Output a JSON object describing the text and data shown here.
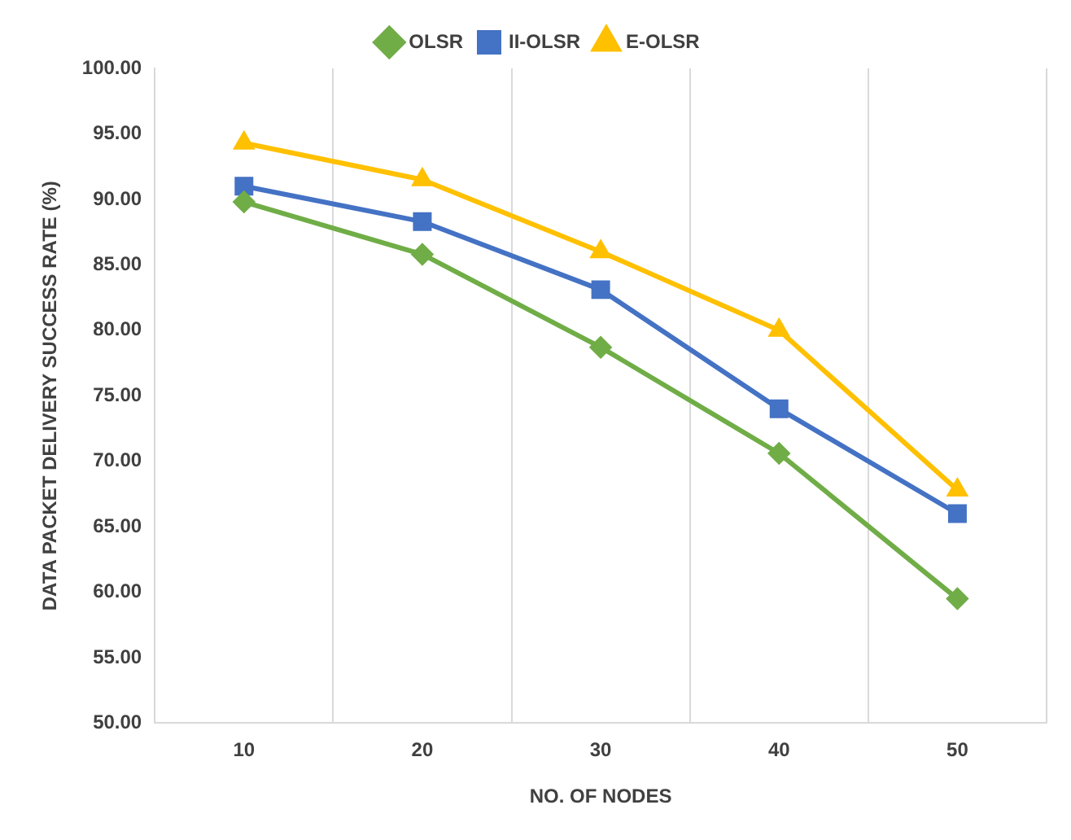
{
  "chart_data": {
    "type": "line",
    "xlabel": "NO. OF NODES",
    "ylabel": "DATA PACKET DELIVERY SUCCESS RATE (%)",
    "categories": [
      "10",
      "20",
      "30",
      "40",
      "50"
    ],
    "series": [
      {
        "name": "OLSR",
        "color": "#70ad47",
        "marker": "diamond",
        "values": [
          89.8,
          85.8,
          78.7,
          70.6,
          59.5
        ]
      },
      {
        "name": "II-OLSR",
        "color": "#4472c4",
        "marker": "square",
        "values": [
          91.0,
          88.3,
          83.1,
          74.0,
          66.0
        ]
      },
      {
        "name": "E-OLSR",
        "color": "#ffc000",
        "marker": "triangle",
        "values": [
          94.3,
          91.5,
          86.0,
          80.0,
          67.8
        ]
      }
    ],
    "ylim": [
      50,
      100
    ],
    "yticks": [
      {
        "value": 50,
        "label": "50.00"
      },
      {
        "value": 55,
        "label": "55.00"
      },
      {
        "value": 60,
        "label": "60.00"
      },
      {
        "value": 65,
        "label": "65.00"
      },
      {
        "value": 70,
        "label": "70.00"
      },
      {
        "value": 75,
        "label": "75.00"
      },
      {
        "value": 80,
        "label": "80.00"
      },
      {
        "value": 85,
        "label": "85.00"
      },
      {
        "value": 90,
        "label": "90.00"
      },
      {
        "value": 95,
        "label": "95.00"
      },
      {
        "value": 100,
        "label": "100.00"
      }
    ],
    "grid": "x",
    "legend": "top",
    "line_style": "solid"
  }
}
